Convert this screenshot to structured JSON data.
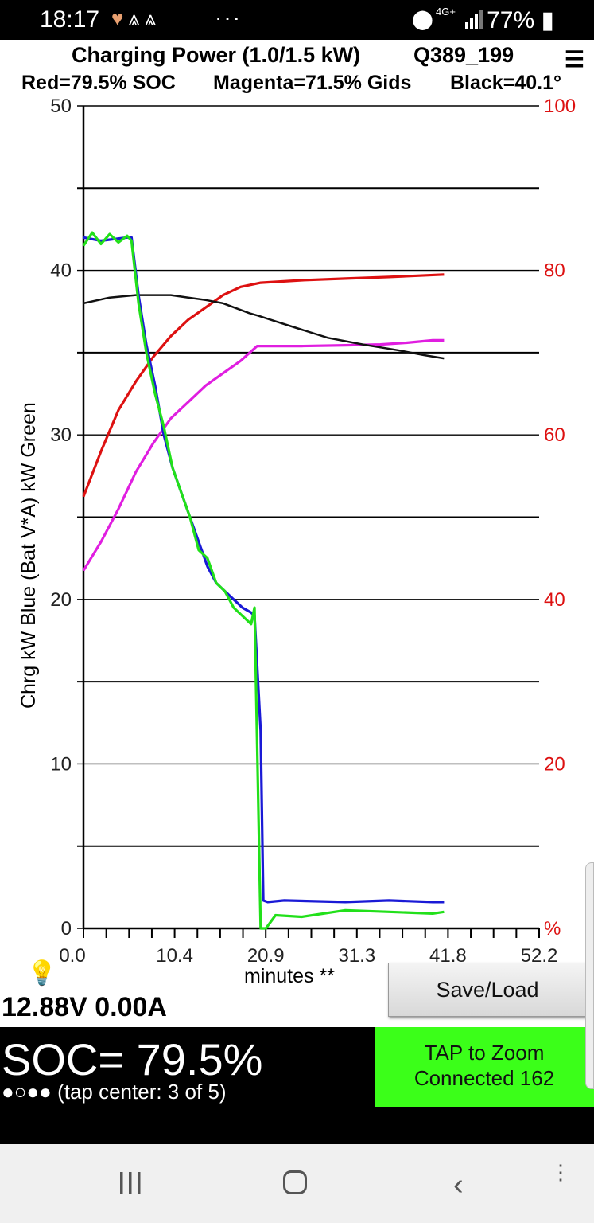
{
  "status_bar": {
    "time": "18:17",
    "icons_left": [
      "heart-icon",
      "app-a-icon",
      "app-a-icon"
    ],
    "dots": "···",
    "network": "4G+",
    "battery": "77%"
  },
  "header": {
    "title": "Charging Power (1.0/1.5 kW)",
    "id": "Q389_199",
    "menu_icon": "☰",
    "legend_red": "Red=79.5% SOC",
    "legend_magenta": "Magenta=71.5% Gids",
    "legend_black": "Black=40.1°"
  },
  "chart_data": {
    "type": "line",
    "ylabel": "Chrg kW Blue  (Bat V*A) kW Green",
    "xlabel": "minutes **",
    "xlim": [
      0,
      52.2
    ],
    "ylim": [
      0,
      50
    ],
    "y2lim": [
      0,
      100
    ],
    "x_ticks": [
      "0.0",
      "10.4",
      "20.9",
      "31.3",
      "41.8",
      "52.2"
    ],
    "y_ticks": [
      "0",
      "10",
      "20",
      "30",
      "40",
      "50"
    ],
    "y2_ticks": [
      "%",
      "20",
      "40",
      "60",
      "80",
      "100"
    ],
    "colors": {
      "blue": "#1a1ad6",
      "green": "#22e01a",
      "red": "#dd1111",
      "magenta": "#e01ee0",
      "black": "#111111"
    },
    "series": [
      {
        "name": "Blue",
        "axis": "left",
        "color": "#1a1ad6",
        "x": [
          0,
          2,
          5,
          5.5,
          6.3,
          7.2,
          8.2,
          9.2,
          10.2,
          11.2,
          12.2,
          13.2,
          14.2,
          15.2,
          16.2,
          17.2,
          18.2,
          19.2,
          19.6,
          20.3,
          20.6,
          21.1,
          23,
          30,
          35,
          40,
          41.3
        ],
        "y": [
          42,
          41.8,
          42,
          42,
          38.5,
          35.5,
          33,
          30,
          28,
          26.5,
          25,
          23.5,
          22,
          21,
          20.5,
          20,
          19.5,
          19.2,
          19,
          12,
          1.7,
          1.6,
          1.7,
          1.6,
          1.7,
          1.6,
          1.6
        ]
      },
      {
        "name": "Green",
        "axis": "left",
        "color": "#22e01a",
        "x": [
          0,
          1,
          2,
          3,
          4,
          5,
          5.5,
          6.3,
          7.2,
          8.2,
          9.2,
          10.2,
          11.2,
          12.2,
          13.2,
          14.2,
          15.2,
          16.2,
          17.2,
          18.2,
          19.2,
          19.6,
          20.3,
          20.9,
          22,
          25,
          30,
          35,
          40,
          41.3
        ],
        "y": [
          41.5,
          42.3,
          41.6,
          42.2,
          41.7,
          42.1,
          41.8,
          38,
          35,
          32.5,
          30.5,
          28,
          26.5,
          25,
          23,
          22.5,
          21,
          20.5,
          19.5,
          19,
          18.5,
          19.5,
          0,
          0,
          0.8,
          0.7,
          1.1,
          1,
          0.9,
          1
        ]
      },
      {
        "name": "Red",
        "axis": "right",
        "color": "#dd1111",
        "x": [
          0,
          2,
          4,
          6,
          8,
          10,
          12,
          14,
          16,
          18,
          20.3,
          25,
          30,
          35,
          41.3
        ],
        "y": [
          52.5,
          58,
          63,
          66.5,
          69.5,
          72,
          74,
          75.5,
          77,
          78,
          78.5,
          78.8,
          79,
          79.2,
          79.5
        ]
      },
      {
        "name": "Magenta",
        "axis": "right",
        "color": "#e01ee0",
        "x": [
          0,
          2,
          4,
          6,
          8,
          10,
          12,
          14,
          16,
          18,
          19.9,
          25,
          30,
          34,
          37,
          40,
          41.3
        ],
        "y": [
          43.5,
          47,
          51,
          55.5,
          59,
          62,
          64,
          66,
          67.5,
          69,
          70.8,
          70.8,
          70.9,
          71,
          71.2,
          71.5,
          71.5
        ]
      },
      {
        "name": "Black",
        "axis": "right",
        "color": "#111111",
        "x": [
          0,
          3,
          6,
          8,
          10,
          12,
          14,
          16,
          18,
          19,
          20,
          22,
          25,
          28,
          32,
          36,
          39,
          41.3
        ],
        "y": [
          76,
          76.7,
          77,
          77,
          77,
          76.7,
          76.4,
          76,
          75.2,
          74.8,
          74.5,
          73.8,
          72.8,
          71.8,
          71,
          70.3,
          69.7,
          69.3
        ]
      }
    ]
  },
  "controls": {
    "bulb_icon": "💡",
    "readout": "12.88V 0.00A",
    "save_load": "Save/Load",
    "soc": "SOC= 79.5%",
    "dots_indicator": "●○●●",
    "tap_center": "(tap center: 3 of 5)",
    "zoom_line1": "TAP to Zoom",
    "zoom_line2": "Connected 162"
  },
  "navbar": {
    "recent_icon": "recent-apps-icon",
    "home_icon": "home-icon",
    "back_icon": "‹",
    "more_icon": "⋮"
  }
}
